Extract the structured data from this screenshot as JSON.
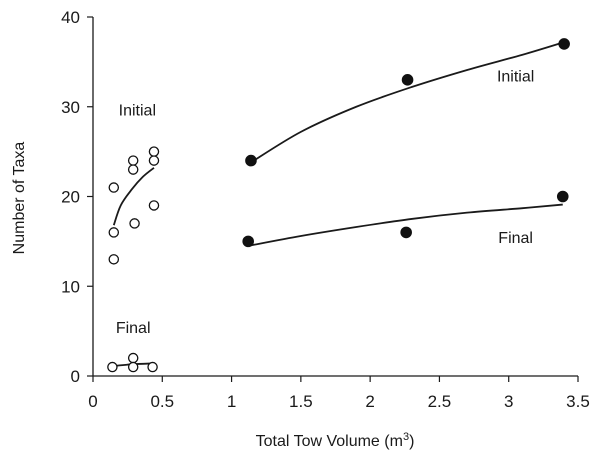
{
  "chart_data": {
    "type": "scatter",
    "xlabel": "Total Tow Volume (m",
    "xlabel_superscript": "3",
    "xlabel_close": ")",
    "ylabel": "Number of Taxa",
    "xlim": [
      0,
      3.5
    ],
    "ylim": [
      0,
      40
    ],
    "x_ticks": [
      "0",
      "0.5",
      "1",
      "1.5",
      "2",
      "2.5",
      "3",
      "3.5"
    ],
    "y_ticks": [
      "0",
      "10",
      "20",
      "30",
      "40"
    ],
    "grid": false,
    "legend": "none",
    "series": [
      {
        "marker": "open",
        "points": [
          [
            0.15,
            21
          ],
          [
            0.15,
            16
          ],
          [
            0.15,
            13
          ],
          [
            0.29,
            24
          ],
          [
            0.29,
            23
          ],
          [
            0.3,
            17
          ],
          [
            0.44,
            25
          ],
          [
            0.44,
            24
          ],
          [
            0.44,
            19
          ]
        ],
        "fit": [
          [
            0.15,
            16.8
          ],
          [
            0.2,
            19.0
          ],
          [
            0.28,
            20.8
          ],
          [
            0.36,
            22.2
          ],
          [
            0.44,
            23.2
          ]
        ]
      },
      {
        "marker": "open",
        "points": [
          [
            0.14,
            1
          ],
          [
            0.29,
            2
          ],
          [
            0.29,
            1
          ],
          [
            0.43,
            1
          ]
        ],
        "fit": [
          [
            0.14,
            1.1
          ],
          [
            0.28,
            1.3
          ],
          [
            0.43,
            1.4
          ]
        ]
      },
      {
        "marker": "filled",
        "points": [
          [
            1.14,
            24
          ],
          [
            2.27,
            33
          ],
          [
            3.4,
            37
          ]
        ],
        "fit": [
          [
            1.14,
            23.8
          ],
          [
            1.5,
            27.2
          ],
          [
            1.9,
            30.0
          ],
          [
            2.3,
            32.2
          ],
          [
            2.7,
            34.1
          ],
          [
            3.1,
            35.8
          ],
          [
            3.4,
            37.2
          ]
        ]
      },
      {
        "marker": "filled",
        "points": [
          [
            1.12,
            15
          ],
          [
            2.26,
            16
          ],
          [
            3.39,
            20
          ]
        ],
        "fit": [
          [
            1.12,
            14.5
          ],
          [
            1.5,
            15.6
          ],
          [
            1.9,
            16.6
          ],
          [
            2.3,
            17.5
          ],
          [
            2.7,
            18.2
          ],
          [
            3.1,
            18.7
          ],
          [
            3.39,
            19.1
          ]
        ]
      }
    ],
    "annotations": [
      {
        "id": "initial-left",
        "text": "Initial",
        "x": 0.32,
        "y": 29
      },
      {
        "id": "final-left",
        "text": "Final",
        "x": 0.29,
        "y": 4.8
      },
      {
        "id": "initial-right",
        "text": "Initial",
        "x": 3.05,
        "y": 32.8
      },
      {
        "id": "final-right",
        "text": "Final",
        "x": 3.05,
        "y": 14.8
      }
    ]
  }
}
